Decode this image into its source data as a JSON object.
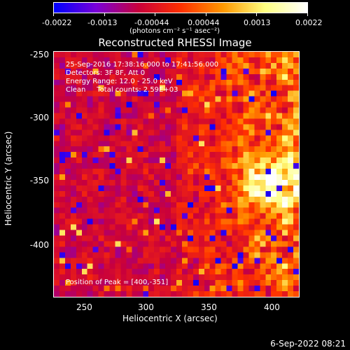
{
  "colorbar": {
    "ticks": [
      "-0.0022",
      "-0.0013",
      "-0.00044",
      "0.00044",
      "0.0013",
      "0.0022"
    ],
    "units": "(photons cm⁻² s⁻¹ asec⁻²)",
    "colors": [
      "#0000ff",
      "#7a00d8",
      "#c8003c",
      "#ff3000",
      "#ff9800",
      "#ffff80",
      "#ffffff"
    ]
  },
  "title": "Reconstructed RHESSI Image",
  "info": {
    "line1": "25-Sep-2016 17:38:16.000 to 17:41:56.000",
    "line2": "Detectors: 3F 8F, Att 0",
    "line3": "Energy Range: 12.0 - 25.0 keV",
    "line4": "Clean     Total counts: 2.59E+03"
  },
  "peak": "Position of Peak = [400,-351]",
  "axes": {
    "xlabel": "Heliocentric X (arcsec)",
    "ylabel": "Heliocentric Y (arcsec)",
    "xticks": [
      "250",
      "300",
      "350",
      "400"
    ],
    "yticks": [
      "-250",
      "-300",
      "-350",
      "-400"
    ],
    "xlim": [
      225,
      420
    ],
    "ylim": [
      -445,
      -245
    ]
  },
  "date_stamp": "6-Sep-2022 08:21"
}
